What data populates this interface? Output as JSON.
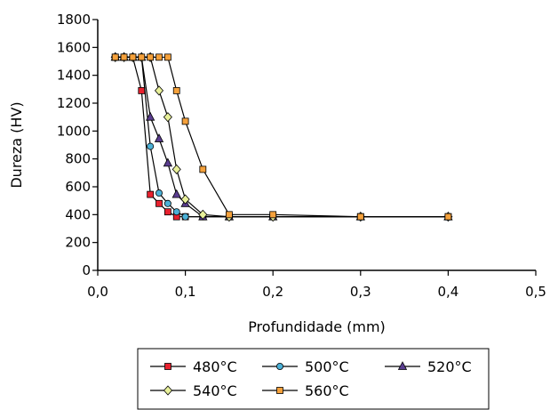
{
  "chart_data": {
    "type": "line",
    "title": "",
    "xlabel": "Profundidade (mm)",
    "ylabel": "Dureza (HV)",
    "xlim": [
      0,
      0.5
    ],
    "ylim": [
      0,
      1800
    ],
    "xticks": [
      0,
      0.1,
      0.2,
      0.3,
      0.4,
      0.5
    ],
    "xtick_labels": [
      "0,0",
      "0,1",
      "0,2",
      "0,3",
      "0,4",
      "0,5"
    ],
    "yticks": [
      0,
      200,
      400,
      600,
      800,
      1000,
      1200,
      1400,
      1600,
      1800
    ],
    "ytick_labels": [
      "0",
      "200",
      "400",
      "600",
      "800",
      "1000",
      "1200",
      "1400",
      "1600",
      "1800"
    ],
    "grid": false,
    "legend_position": "bottom",
    "series": [
      {
        "name": "480°C",
        "color": "#e8212e",
        "marker": "square",
        "points": [
          [
            0.02,
            1530
          ],
          [
            0.03,
            1530
          ],
          [
            0.04,
            1530
          ],
          [
            0.05,
            1290
          ],
          [
            0.06,
            545
          ],
          [
            0.07,
            480
          ],
          [
            0.08,
            420
          ],
          [
            0.09,
            385
          ],
          [
            0.1,
            385
          ],
          [
            0.12,
            385
          ],
          [
            0.15,
            385
          ],
          [
            0.2,
            385
          ],
          [
            0.3,
            385
          ],
          [
            0.4,
            385
          ]
        ]
      },
      {
        "name": "500°C",
        "color": "#4bb0d6",
        "marker": "circle",
        "points": [
          [
            0.02,
            1530
          ],
          [
            0.03,
            1530
          ],
          [
            0.04,
            1530
          ],
          [
            0.05,
            1530
          ],
          [
            0.06,
            890
          ],
          [
            0.07,
            555
          ],
          [
            0.08,
            480
          ],
          [
            0.09,
            420
          ],
          [
            0.1,
            385
          ],
          [
            0.12,
            385
          ],
          [
            0.15,
            385
          ],
          [
            0.2,
            385
          ],
          [
            0.3,
            385
          ],
          [
            0.4,
            385
          ]
        ]
      },
      {
        "name": "520°C",
        "color": "#5a3d8f",
        "marker": "triangle",
        "points": [
          [
            0.02,
            1530
          ],
          [
            0.03,
            1530
          ],
          [
            0.04,
            1530
          ],
          [
            0.05,
            1530
          ],
          [
            0.06,
            1100
          ],
          [
            0.07,
            945
          ],
          [
            0.08,
            770
          ],
          [
            0.09,
            545
          ],
          [
            0.1,
            480
          ],
          [
            0.12,
            385
          ],
          [
            0.15,
            385
          ],
          [
            0.2,
            385
          ],
          [
            0.3,
            385
          ],
          [
            0.4,
            385
          ]
        ]
      },
      {
        "name": "540°C",
        "color": "#e8f09a",
        "marker": "diamond",
        "points": [
          [
            0.02,
            1530
          ],
          [
            0.03,
            1530
          ],
          [
            0.04,
            1530
          ],
          [
            0.05,
            1530
          ],
          [
            0.06,
            1530
          ],
          [
            0.07,
            1290
          ],
          [
            0.08,
            1100
          ],
          [
            0.09,
            725
          ],
          [
            0.1,
            510
          ],
          [
            0.12,
            400
          ],
          [
            0.15,
            385
          ],
          [
            0.2,
            385
          ],
          [
            0.3,
            385
          ],
          [
            0.4,
            385
          ]
        ]
      },
      {
        "name": "560°C",
        "color": "#f5a13b",
        "marker": "square",
        "points": [
          [
            0.02,
            1530
          ],
          [
            0.03,
            1530
          ],
          [
            0.04,
            1530
          ],
          [
            0.05,
            1530
          ],
          [
            0.06,
            1530
          ],
          [
            0.07,
            1530
          ],
          [
            0.08,
            1530
          ],
          [
            0.09,
            1290
          ],
          [
            0.1,
            1070
          ],
          [
            0.12,
            725
          ],
          [
            0.15,
            400
          ],
          [
            0.2,
            400
          ],
          [
            0.3,
            385
          ],
          [
            0.4,
            385
          ]
        ]
      }
    ]
  }
}
